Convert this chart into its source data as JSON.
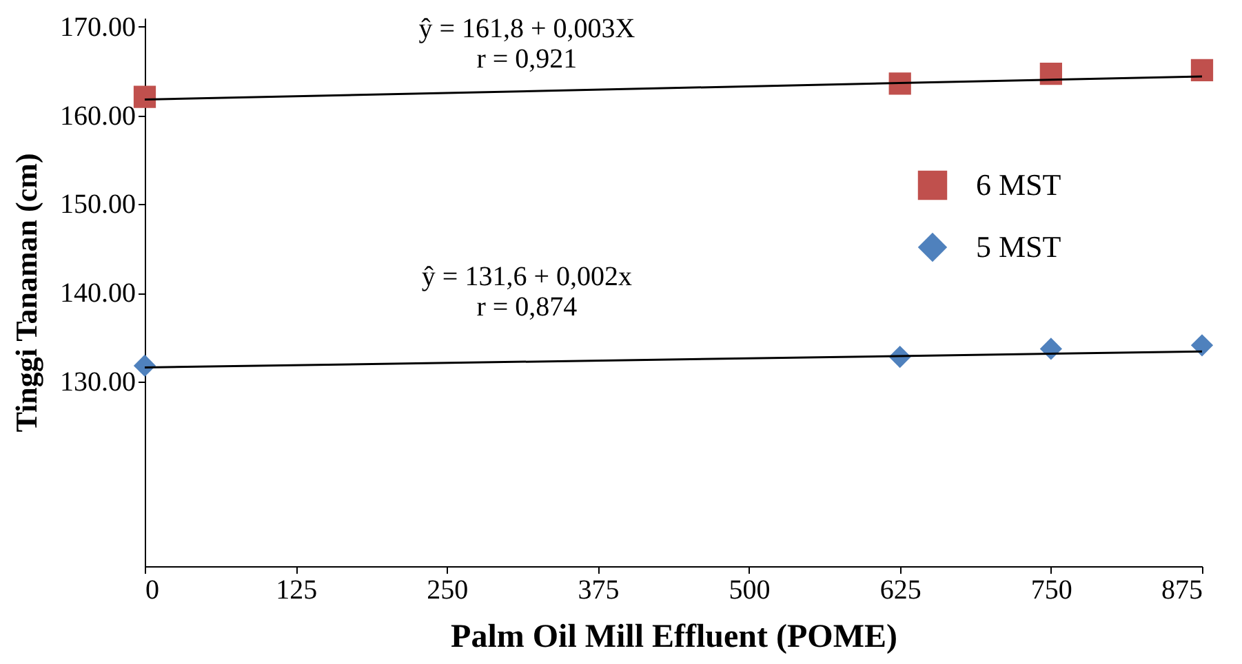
{
  "chart_data": {
    "type": "scatter",
    "xlabel": "Palm Oil Mill Effluent (POME)",
    "ylabel": "Tinggi Tanaman (cm)",
    "series": [
      {
        "name": "6 MST",
        "color": "#c0504d",
        "marker": "square",
        "x": [
          0,
          625,
          750,
          875
        ],
        "values": [
          162.1,
          163.6,
          164.7,
          165.1
        ]
      },
      {
        "name": "5 MST",
        "color": "#4f81bd",
        "marker": "diamond",
        "x": [
          0,
          625,
          750,
          875
        ],
        "values": [
          131.8,
          132.8,
          133.7,
          134.1
        ]
      },
      {
        "type": "line",
        "color": "#000000",
        "x": [
          0,
          875
        ],
        "values": [
          161.8,
          164.4
        ]
      },
      {
        "type": "line",
        "color": "#000000",
        "x": [
          0,
          875
        ],
        "values": [
          131.6,
          133.4
        ]
      }
    ],
    "annotations": [
      "ŷ = 161,8 + 0,003X",
      "r = 0,921",
      "ŷ  = 131,6 + 0,002x",
      "r = 0,874"
    ],
    "xlim": [
      0,
      875
    ],
    "xticks": [
      0,
      125,
      250,
      375,
      500,
      625,
      750,
      875
    ],
    "ylim": [
      109.2,
      171
    ],
    "yticks": [
      {
        "value": 130,
        "label": "130.00"
      },
      {
        "value": 140,
        "label": "140.00"
      },
      {
        "value": 150,
        "label": "150.00"
      },
      {
        "value": 160,
        "label": "160.00"
      },
      {
        "value": 170,
        "label": "170.00"
      }
    ],
    "grid": false,
    "legend": "right"
  }
}
